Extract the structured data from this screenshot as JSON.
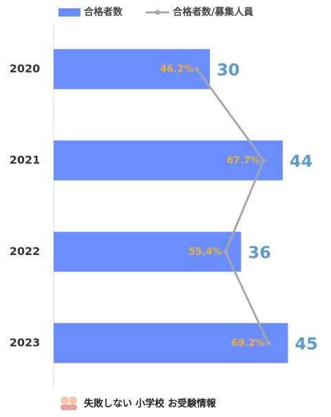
{
  "chart_data": {
    "type": "bar",
    "orientation": "horizontal",
    "categories": [
      "2020",
      "2021",
      "2022",
      "2023"
    ],
    "series": [
      {
        "name": "合格者数",
        "color": "#6a8dff",
        "label_color": "#5b9bd5",
        "values": [
          30,
          44,
          36,
          45
        ]
      },
      {
        "name": "合格者数/募集人員",
        "type": "line",
        "axis": "x2",
        "color": "#a6a6a6",
        "label_color": "#f0b030",
        "values": [
          46.2,
          67.7,
          55.4,
          69.2
        ],
        "value_labels": [
          "46.2%",
          "67.7%",
          "55.4%",
          "69.2%"
        ]
      }
    ],
    "xlim": [
      0,
      53
    ],
    "x2lim": [
      0,
      89
    ],
    "source": "失敗しない 小学校 お受験情報"
  }
}
